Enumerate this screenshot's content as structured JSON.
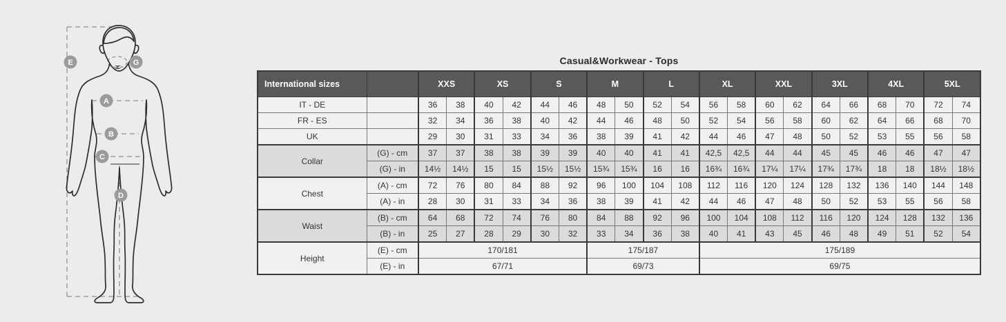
{
  "title": "Casual&Workwear - Tops",
  "colors": {
    "page_bg": "#ececeb",
    "header_bg": "#59595b",
    "row_light": "#f1f1f0",
    "row_shade": "#dbdbda",
    "border_dark": "#39393b",
    "badge": "#9b9b9b",
    "dash_line": "#9d9d9d",
    "outline": "#2d2d2d"
  },
  "diagram": {
    "points": [
      "E",
      "G",
      "A",
      "B",
      "C",
      "D"
    ]
  },
  "table": {
    "corner_label": "International sizes",
    "sizes": [
      "XXS",
      "XS",
      "S",
      "M",
      "L",
      "XL",
      "XXL",
      "3XL",
      "4XL",
      "5XL"
    ],
    "simple_rows": [
      {
        "label": "IT - DE",
        "values": [
          "36",
          "38",
          "40",
          "42",
          "44",
          "46",
          "48",
          "50",
          "52",
          "54",
          "56",
          "58",
          "60",
          "62",
          "64",
          "66",
          "68",
          "70",
          "72",
          "74"
        ]
      },
      {
        "label": "FR - ES",
        "values": [
          "32",
          "34",
          "36",
          "38",
          "40",
          "42",
          "44",
          "46",
          "48",
          "50",
          "52",
          "54",
          "56",
          "58",
          "60",
          "62",
          "64",
          "66",
          "68",
          "70"
        ]
      },
      {
        "label": "UK",
        "values": [
          "29",
          "30",
          "31",
          "33",
          "34",
          "36",
          "38",
          "39",
          "41",
          "42",
          "44",
          "46",
          "47",
          "48",
          "50",
          "52",
          "53",
          "55",
          "56",
          "58"
        ]
      }
    ],
    "measure_groups": [
      {
        "label": "Collar",
        "rows": [
          {
            "unit": "(G) - cm",
            "values": [
              "37",
              "37",
              "38",
              "38",
              "39",
              "39",
              "40",
              "40",
              "41",
              "41",
              "42,5",
              "42,5",
              "44",
              "44",
              "45",
              "45",
              "46",
              "46",
              "47",
              "47"
            ]
          },
          {
            "unit": "(G) - in",
            "values": [
              "14½",
              "14½",
              "15",
              "15",
              "15½",
              "15½",
              "15¾",
              "15¾",
              "16",
              "16",
              "16¾",
              "16¾",
              "17¼",
              "17¼",
              "17¾",
              "17¾",
              "18",
              "18",
              "18½",
              "18½"
            ]
          }
        ]
      },
      {
        "label": "Chest",
        "rows": [
          {
            "unit": "(A) - cm",
            "values": [
              "72",
              "76",
              "80",
              "84",
              "88",
              "92",
              "96",
              "100",
              "104",
              "108",
              "112",
              "116",
              "120",
              "124",
              "128",
              "132",
              "136",
              "140",
              "144",
              "148"
            ]
          },
          {
            "unit": "(A) - in",
            "values": [
              "28",
              "30",
              "31",
              "33",
              "34",
              "36",
              "38",
              "39",
              "41",
              "42",
              "44",
              "46",
              "47",
              "48",
              "50",
              "52",
              "53",
              "55",
              "56",
              "58"
            ]
          }
        ]
      },
      {
        "label": "Waist",
        "rows": [
          {
            "unit": "(B) - cm",
            "values": [
              "64",
              "68",
              "72",
              "74",
              "76",
              "80",
              "84",
              "88",
              "92",
              "96",
              "100",
              "104",
              "108",
              "112",
              "116",
              "120",
              "124",
              "128",
              "132",
              "136"
            ]
          },
          {
            "unit": "(B) - in",
            "values": [
              "25",
              "27",
              "28",
              "29",
              "30",
              "32",
              "33",
              "34",
              "36",
              "38",
              "40",
              "41",
              "43",
              "45",
              "46",
              "48",
              "49",
              "51",
              "52",
              "54"
            ]
          }
        ]
      },
      {
        "label": "Height",
        "rows": [
          {
            "unit": "(E) - cm",
            "spans": [
              {
                "span": 6,
                "value": "170/181"
              },
              {
                "span": 4,
                "value": "175/187"
              },
              {
                "span": 10,
                "value": "175/189"
              }
            ]
          },
          {
            "unit": "(E) - in",
            "spans": [
              {
                "span": 6,
                "value": "67/71"
              },
              {
                "span": 4,
                "value": "69/73"
              },
              {
                "span": 10,
                "value": "69/75"
              }
            ]
          }
        ]
      }
    ]
  }
}
